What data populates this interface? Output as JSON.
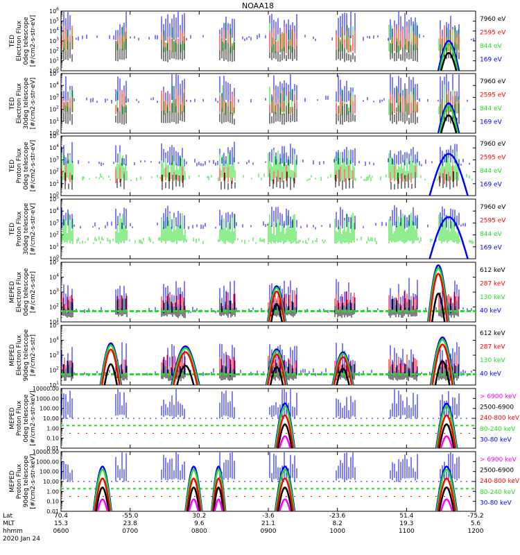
{
  "title": "NOAA18",
  "date_label": "2020 Jan 24",
  "footer_labels": [
    "Lat",
    "MLT",
    "hhmm"
  ],
  "footer_values": {
    "lat": [
      "70.4",
      "-55.0",
      "30.2",
      "-3.6",
      "-23.6",
      "51.4",
      "-75.2"
    ],
    "mlt": [
      "15.3",
      "23.8",
      "9.6",
      "21.1",
      "8.2",
      "19.3",
      "5.6"
    ],
    "hhmm": [
      "0600",
      "0700",
      "0800",
      "0900",
      "1000",
      "1100",
      "1200"
    ]
  },
  "colors": {
    "black": "#000000",
    "red": "#ff0000",
    "green": "#22dd22",
    "blue": "#0000ff",
    "magenta": "#ff00ff"
  },
  "chart_data": [
    {
      "type": "line",
      "ylabel": [
        "TED",
        "Electron Flux",
        "0deg telescope",
        "[#/cm2-s-str-eV]"
      ],
      "y_scale": "log",
      "ylim": [
        1,
        1000000
      ],
      "ytick_labels": [
        "10^0",
        "10^1",
        "10^2",
        "10^3",
        "10^4",
        "10^5",
        "10^6"
      ],
      "x_range_hhmm": [
        "0600",
        "1200"
      ],
      "series": [
        {
          "name": "7960 eV",
          "color": "black"
        },
        {
          "name": "2595 eV",
          "color": "red"
        },
        {
          "name": "844 eV",
          "color": "green"
        },
        {
          "name": "169 eV",
          "color": "blue"
        }
      ]
    },
    {
      "type": "line",
      "ylabel": [
        "TED",
        "Electron Flux",
        "30deg telescope",
        "[#/cm2-s-str-eV]"
      ],
      "y_scale": "log",
      "ylim": [
        1,
        100000
      ],
      "ytick_labels": [
        "10^0",
        "10^1",
        "10^2",
        "10^3",
        "10^4",
        "10^5"
      ],
      "x_range_hhmm": [
        "0600",
        "1200"
      ],
      "series": [
        {
          "name": "7960 eV",
          "color": "black"
        },
        {
          "name": "2595 eV",
          "color": "red"
        },
        {
          "name": "844 eV",
          "color": "green"
        },
        {
          "name": "169 eV",
          "color": "blue"
        }
      ]
    },
    {
      "type": "line",
      "ylabel": [
        "TED",
        "Proton Flux",
        "0deg telescope",
        "[#/cm2-s-str-eV]"
      ],
      "y_scale": "log",
      "ylim": [
        1,
        100000
      ],
      "ytick_labels": [
        "10^0",
        "10^1",
        "10^2",
        "10^3",
        "10^4",
        "10^5"
      ],
      "x_range_hhmm": [
        "0600",
        "1200"
      ],
      "series": [
        {
          "name": "7960 eV",
          "color": "black"
        },
        {
          "name": "2595 eV",
          "color": "red"
        },
        {
          "name": "844 eV",
          "color": "green"
        },
        {
          "name": "169 eV",
          "color": "blue"
        }
      ]
    },
    {
      "type": "line",
      "ylabel": [
        "TED",
        "Proton Flux",
        "30deg telescope",
        "[#/cm2-s-str-eV]"
      ],
      "y_scale": "log",
      "ylim": [
        1,
        100000
      ],
      "ytick_labels": [
        "10^0",
        "10^1",
        "10^2",
        "10^3",
        "10^4",
        "10^5"
      ],
      "x_range_hhmm": [
        "0600",
        "1200"
      ],
      "series": [
        {
          "name": "7960 eV",
          "color": "black"
        },
        {
          "name": "2595 eV",
          "color": "red"
        },
        {
          "name": "844 eV",
          "color": "green"
        },
        {
          "name": "169 eV",
          "color": "blue"
        }
      ]
    },
    {
      "type": "line",
      "ylabel": [
        "MEPED",
        "Electron Flux",
        "0deg telescope",
        "[#/cm2-s-str]"
      ],
      "y_scale": "log",
      "ylim": [
        10,
        100000
      ],
      "ytick_labels": [
        "10^1",
        "10^2",
        "10^3",
        "10^4",
        "10^5"
      ],
      "x_range_hhmm": [
        "0600",
        "1200"
      ],
      "series": [
        {
          "name": "612 keV",
          "color": "black"
        },
        {
          "name": "287 keV",
          "color": "red"
        },
        {
          "name": "130 keV",
          "color": "green"
        },
        {
          "name": "40 keV",
          "color": "blue"
        }
      ]
    },
    {
      "type": "line",
      "ylabel": [
        "MEPED",
        "Electron Flux",
        "90deg telescope",
        "[#/cm2-s-str]"
      ],
      "y_scale": "log",
      "ylim": [
        10,
        100000
      ],
      "ytick_labels": [
        "10^1",
        "10^2",
        "10^3",
        "10^4",
        "10^5"
      ],
      "x_range_hhmm": [
        "0600",
        "1200"
      ],
      "series": [
        {
          "name": "612 keV",
          "color": "black"
        },
        {
          "name": "287 keV",
          "color": "red"
        },
        {
          "name": "130 keV",
          "color": "green"
        },
        {
          "name": "40 keV",
          "color": "blue"
        }
      ]
    },
    {
      "type": "line",
      "ylabel": [
        "MEPED",
        "Proton Flux",
        "0deg telescope",
        "[#/cm2-s-str-keV]"
      ],
      "y_scale": "log",
      "ylim": [
        0.01,
        10000
      ],
      "ytick_labels": [
        "10000.00",
        "1000.00",
        "100.00",
        "10.00",
        "1.00",
        "0.10",
        "0.01"
      ],
      "x_range_hhmm": [
        "0600",
        "1200"
      ],
      "series": [
        {
          "name": "> 6900 keV",
          "color": "magenta"
        },
        {
          "name": "2500-6900",
          "color": "black"
        },
        {
          "name": "240-800 keV",
          "color": "red"
        },
        {
          "name": "80-240 keV",
          "color": "green"
        },
        {
          "name": "30-80 keV",
          "color": "blue"
        }
      ]
    },
    {
      "type": "line",
      "ylabel": [
        "MEPED",
        "Proton Flux",
        "90deg telescope",
        "[#/cm2-s-str-keV]"
      ],
      "y_scale": "log",
      "ylim": [
        0.01,
        10000
      ],
      "ytick_labels": [
        "10000.00",
        "1000.00",
        "100.00",
        "10.00",
        "1.00",
        "0.10",
        "0.01"
      ],
      "x_range_hhmm": [
        "0600",
        "1200"
      ],
      "series": [
        {
          "name": "> 6900 keV",
          "color": "magenta"
        },
        {
          "name": "2500-6900",
          "color": "black"
        },
        {
          "name": "240-800 keV",
          "color": "red"
        },
        {
          "name": "80-240 keV",
          "color": "green"
        },
        {
          "name": "30-80 keV",
          "color": "blue"
        }
      ]
    }
  ]
}
